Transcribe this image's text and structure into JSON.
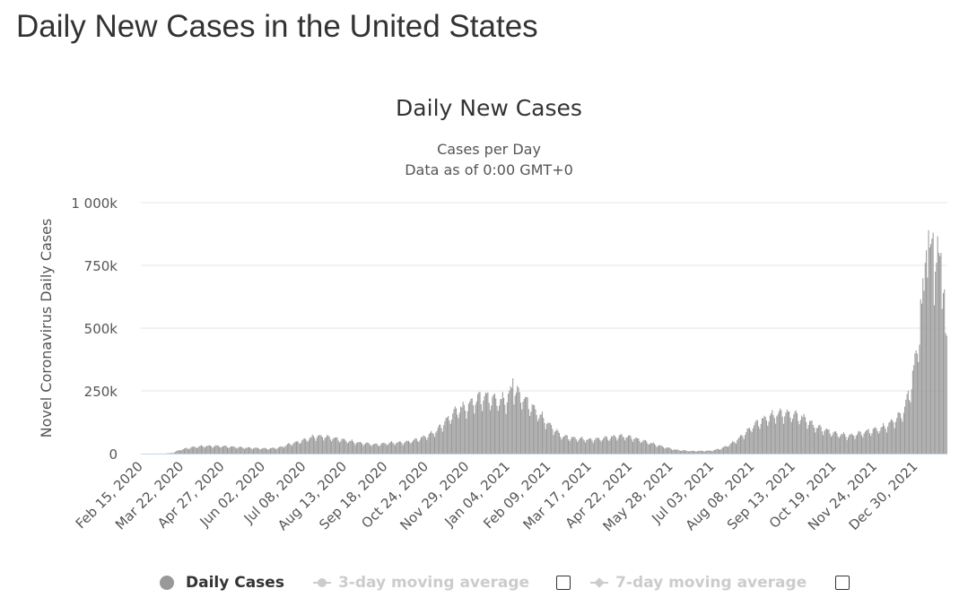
{
  "page": {
    "heading": "Daily New Cases in the United States"
  },
  "chart_data": {
    "type": "bar",
    "title": "Daily New Cases",
    "subtitle_lines": [
      "Cases per Day",
      "Data as of 0:00 GMT+0"
    ],
    "ylabel": "Novel Coronavirus Daily Cases",
    "xlabel": "",
    "ylim": [
      0,
      1000000
    ],
    "ytick_labels": [
      "0",
      "250k",
      "500k",
      "750k",
      "1 000k"
    ],
    "ytick_values": [
      0,
      250000,
      500000,
      750000,
      1000000
    ],
    "x_start": "2020-02-15",
    "x_end": "2022-01-26",
    "xtick_labels": [
      "Feb 15, 2020",
      "Mar 22, 2020",
      "Apr 27, 2020",
      "Jun 02, 2020",
      "Jul 08, 2020",
      "Aug 13, 2020",
      "Sep 18, 2020",
      "Oct 24, 2020",
      "Nov 29, 2020",
      "Jan 04, 2021",
      "Feb 09, 2021",
      "Mar 17, 2021",
      "Apr 22, 2021",
      "May 28, 2021",
      "Jul 03, 2021",
      "Aug 08, 2021",
      "Sep 13, 2021",
      "Oct 19, 2021",
      "Nov 24, 2021",
      "Dec 30, 2021"
    ],
    "grid": true,
    "legend_position": "bottom",
    "series": [
      {
        "name": "Daily Cases",
        "color": "#999999",
        "anchors": [
          [
            "2020-02-15",
            0
          ],
          [
            "2020-03-07",
            300
          ],
          [
            "2020-03-14",
            3000
          ],
          [
            "2020-03-20",
            15000
          ],
          [
            "2020-03-25",
            20000
          ],
          [
            "2020-04-01",
            26000
          ],
          [
            "2020-04-10",
            30000
          ],
          [
            "2020-04-24",
            30000
          ],
          [
            "2020-05-15",
            24000
          ],
          [
            "2020-06-05",
            20000
          ],
          [
            "2020-06-15",
            23000
          ],
          [
            "2020-06-25",
            38000
          ],
          [
            "2020-07-05",
            50000
          ],
          [
            "2020-07-17",
            68000
          ],
          [
            "2020-07-25",
            68000
          ],
          [
            "2020-08-10",
            55000
          ],
          [
            "2020-08-25",
            43000
          ],
          [
            "2020-09-10",
            36000
          ],
          [
            "2020-09-20",
            42000
          ],
          [
            "2020-10-05",
            45000
          ],
          [
            "2020-10-15",
            55000
          ],
          [
            "2020-10-24",
            70000
          ],
          [
            "2020-11-01",
            88000
          ],
          [
            "2020-11-10",
            130000
          ],
          [
            "2020-11-20",
            175000
          ],
          [
            "2020-11-29",
            185000
          ],
          [
            "2020-12-08",
            215000
          ],
          [
            "2020-12-15",
            225000
          ],
          [
            "2020-12-25",
            210000
          ],
          [
            "2021-01-02",
            210000
          ],
          [
            "2021-01-08",
            260000
          ],
          [
            "2021-01-12",
            240000
          ],
          [
            "2021-01-18",
            215000
          ],
          [
            "2021-01-28",
            170000
          ],
          [
            "2021-02-09",
            115000
          ],
          [
            "2021-02-20",
            70000
          ],
          [
            "2021-03-01",
            62000
          ],
          [
            "2021-03-17",
            55000
          ],
          [
            "2021-04-01",
            62000
          ],
          [
            "2021-04-12",
            70000
          ],
          [
            "2021-04-22",
            65000
          ],
          [
            "2021-05-05",
            48000
          ],
          [
            "2021-05-20",
            28000
          ],
          [
            "2021-06-01",
            15000
          ],
          [
            "2021-06-15",
            10000
          ],
          [
            "2021-06-28",
            11000
          ],
          [
            "2021-07-03",
            12000
          ],
          [
            "2021-07-12",
            22000
          ],
          [
            "2021-07-22",
            45000
          ],
          [
            "2021-08-01",
            80000
          ],
          [
            "2021-08-08",
            110000
          ],
          [
            "2021-08-15",
            130000
          ],
          [
            "2021-08-25",
            150000
          ],
          [
            "2021-09-01",
            160000
          ],
          [
            "2021-09-13",
            155000
          ],
          [
            "2021-09-22",
            140000
          ],
          [
            "2021-10-01",
            110000
          ],
          [
            "2021-10-19",
            80000
          ],
          [
            "2021-11-01",
            70000
          ],
          [
            "2021-11-10",
            80000
          ],
          [
            "2021-11-24",
            95000
          ],
          [
            "2021-12-02",
            105000
          ],
          [
            "2021-12-10",
            130000
          ],
          [
            "2021-12-18",
            160000
          ],
          [
            "2021-12-24",
            240000
          ],
          [
            "2021-12-28",
            330000
          ],
          [
            "2022-01-03",
            520000
          ],
          [
            "2022-01-08",
            710000
          ],
          [
            "2022-01-12",
            800000
          ],
          [
            "2022-01-15",
            790000
          ],
          [
            "2022-01-19",
            760000
          ],
          [
            "2022-01-23",
            700000
          ],
          [
            "2022-01-26",
            560000
          ]
        ],
        "weekly_pattern": [
          0.78,
          0.92,
          1.03,
          1.08,
          1.12,
          1.06,
          0.92
        ],
        "spikes": [
          [
            "2020-12-03",
            220000
          ],
          [
            "2020-12-10",
            245000
          ],
          [
            "2020-12-17",
            245000
          ],
          [
            "2021-01-08",
            300000
          ],
          [
            "2021-01-14",
            245000
          ],
          [
            "2022-01-03",
            615000
          ],
          [
            "2022-01-07",
            760000
          ],
          [
            "2022-01-08",
            810000
          ],
          [
            "2022-01-10",
            890000
          ],
          [
            "2022-01-12",
            835000
          ],
          [
            "2022-01-14",
            880000
          ],
          [
            "2022-01-17",
            760000
          ],
          [
            "2022-01-19",
            800000
          ],
          [
            "2022-01-21",
            800000
          ],
          [
            "2022-01-25",
            480000
          ],
          [
            "2022-01-26",
            470000
          ]
        ]
      }
    ],
    "legend": [
      {
        "label": "Daily Cases",
        "enabled": true,
        "color": "#999999",
        "icon": "circle"
      },
      {
        "label": "3-day moving average",
        "enabled": false,
        "color": "#cccccc",
        "icon": "line-circle"
      },
      {
        "label": "7-day moving average",
        "enabled": false,
        "color": "#cccccc",
        "icon": "line-diamond"
      }
    ]
  }
}
